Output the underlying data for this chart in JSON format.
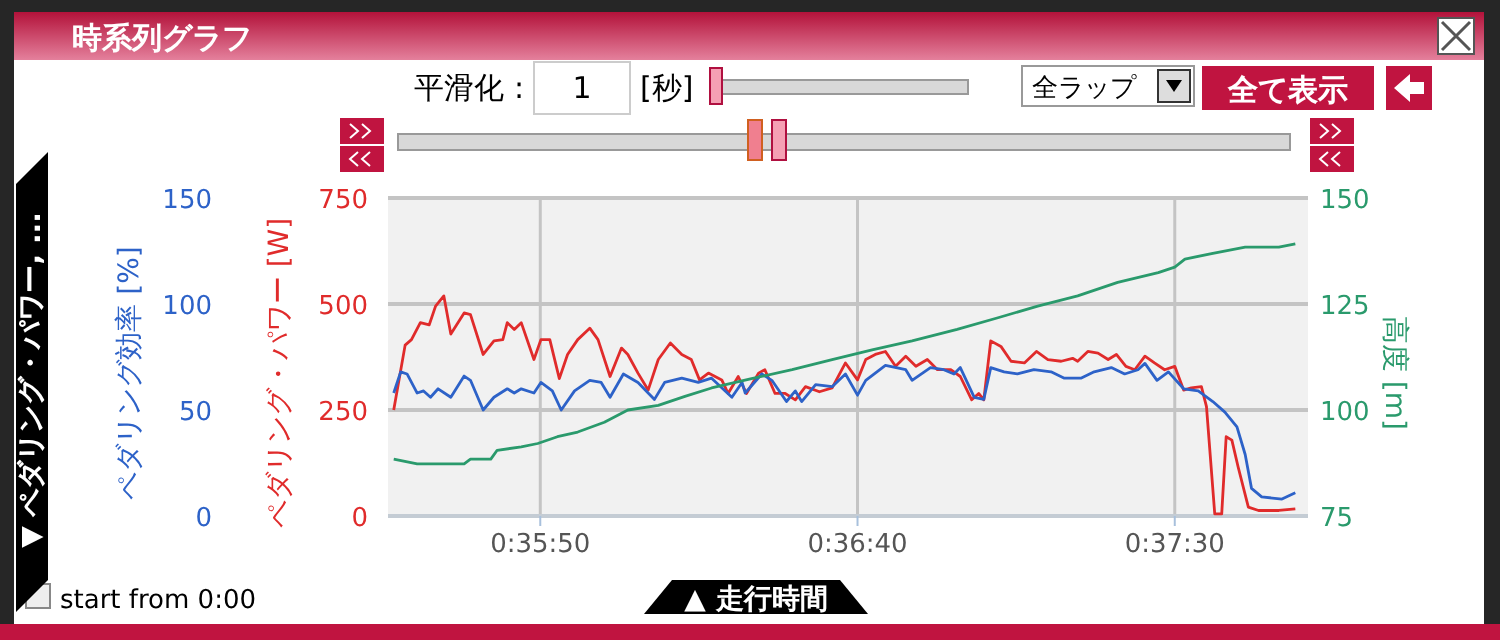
{
  "chart_data": {
    "type": "line",
    "title": "時系列グラフ",
    "xlabel": "▲ 走行時間",
    "ylabel": "ペダリング・パワー [W]",
    "y2label": "高度 [m]",
    "y3label": "ペダリング効率 [%]",
    "annotations": [
      "平滑化 :",
      "1",
      "[秒]",
      "全ラップ",
      "全て表示",
      "▼ ペダリング・パワー, ...",
      "start from 0:00"
    ],
    "grid": true,
    "xlim": [
      2126,
      2271
    ],
    "xticks": [
      {
        "value": 2150,
        "label": "0:35:50"
      },
      {
        "value": 2200,
        "label": "0:36:40"
      },
      {
        "value": 2250,
        "label": "0:37:30"
      }
    ],
    "ylim": [
      0,
      750
    ],
    "yticks": [
      0,
      250,
      500,
      750
    ],
    "y2lim": [
      75,
      150
    ],
    "y2ticks": [
      75,
      100,
      125,
      150
    ],
    "y3lim": [
      0,
      150
    ],
    "y3ticks": [
      0,
      50,
      100,
      150
    ],
    "series": [
      {
        "color": "#e02b2b",
        "axis": "y",
        "x": [
          2126.9,
          2128.7,
          2129.7,
          2131.1,
          2132.5,
          2133.5,
          2134.8,
          2135.9,
          2138,
          2139,
          2141,
          2142.7,
          2144.1,
          2144.8,
          2145.9,
          2147,
          2149,
          2150.1,
          2151.5,
          2153,
          2154.3,
          2155.9,
          2157.8,
          2159.1,
          2161,
          2162.8,
          2163.8,
          2165.4,
          2167,
          2168.6,
          2170.5,
          2172.3,
          2173.8,
          2175.1,
          2176.5,
          2178.6,
          2179.6,
          2181.2,
          2182.5,
          2184.4,
          2185.4,
          2187,
          2188.6,
          2190.2,
          2191.8,
          2194,
          2196,
          2198.1,
          2200,
          2201.3,
          2202.8,
          2204.4,
          2206,
          2207.6,
          2209.2,
          2211,
          2212.6,
          2214.7,
          2216.2,
          2218,
          2219.1,
          2219.9,
          2221,
          2222.6,
          2224.2,
          2226.3,
          2228.2,
          2230,
          2232.1,
          2233.9,
          2234.7,
          2236.3,
          2237.9,
          2239.5,
          2240.8,
          2242.3,
          2243.7,
          2245.3,
          2246.8,
          2248.4,
          2250,
          2251.4,
          2252.6,
          2254.2,
          2255,
          2256.3,
          2257.4,
          2258.1,
          2259,
          2260,
          2261.6,
          2263.2,
          2266.4,
          2269
        ],
        "values": [
          250,
          403,
          416,
          456,
          451,
          495,
          519,
          429,
          479,
          475,
          381,
          413,
          416,
          456,
          440,
          456,
          369,
          416,
          416,
          324,
          381,
          416,
          443,
          416,
          329,
          396,
          381,
          337,
          297,
          369,
          408,
          381,
          369,
          321,
          337,
          321,
          289,
          329,
          289,
          337,
          345,
          289,
          289,
          274,
          305,
          293,
          302,
          361,
          321,
          369,
          381,
          388,
          353,
          377,
          353,
          369,
          345,
          345,
          329,
          274,
          289,
          274,
          413,
          400,
          365,
          361,
          388,
          369,
          365,
          372,
          365,
          388,
          384,
          369,
          381,
          353,
          345,
          377,
          361,
          345,
          353,
          297,
          302,
          305,
          258,
          5,
          5,
          187,
          179,
          115,
          21,
          13,
          13,
          17
        ]
      },
      {
        "color": "#2d62c8",
        "axis": "y3",
        "x": [
          2126.9,
          2128,
          2129,
          2130.6,
          2131.6,
          2132.7,
          2133.9,
          2135.9,
          2138,
          2139,
          2141,
          2142.7,
          2144.8,
          2145.9,
          2147,
          2149,
          2150.1,
          2151.9,
          2153.3,
          2155.4,
          2157.8,
          2159.6,
          2161,
          2163.1,
          2165.4,
          2168,
          2169.6,
          2172.3,
          2174.9,
          2177,
          2180.2,
          2181.8,
          2182.3,
          2184.9,
          2186.5,
          2188.8,
          2190.2,
          2191.2,
          2193.4,
          2196,
          2198.1,
          2200,
          2201.3,
          2204.4,
          2207.6,
          2208.6,
          2211.5,
          2213.6,
          2215.2,
          2216.2,
          2218.4,
          2219.9,
          2221,
          2223.1,
          2225.2,
          2227.8,
          2230.5,
          2232.6,
          2235.2,
          2237.3,
          2240,
          2242.1,
          2244.2,
          2245.3,
          2247.2,
          2249,
          2251.4,
          2253.7,
          2256,
          2257.9,
          2259.8,
          2261.1,
          2262.1,
          2263.7,
          2266.9,
          2269
        ],
        "values": [
          58,
          68,
          67,
          58,
          59,
          56,
          60,
          56,
          66,
          64,
          50,
          56,
          60,
          58,
          60,
          58,
          63,
          59,
          50,
          59,
          64,
          63,
          56,
          67,
          63,
          55,
          63,
          65,
          63,
          65,
          56,
          63,
          58,
          67,
          64,
          54,
          59,
          54,
          62,
          61,
          67,
          57,
          64,
          71,
          69,
          64,
          70,
          69,
          67,
          70,
          56,
          55,
          70,
          68,
          67,
          69,
          68,
          65,
          65,
          68,
          70,
          67,
          69,
          72,
          64,
          68,
          60,
          59,
          54,
          49,
          42,
          29,
          13,
          9,
          8,
          11
        ]
      },
      {
        "color": "#2a9a6c",
        "axis": "y2",
        "x": [
          2126.9,
          2130.6,
          2138,
          2139,
          2142.2,
          2143.2,
          2147,
          2149.6,
          2152.7,
          2155.9,
          2160.1,
          2163.8,
          2168.6,
          2172.8,
          2177,
          2183.3,
          2189.7,
          2196,
          2202.3,
          2208.6,
          2215.7,
          2222,
          2228.4,
          2234.7,
          2241,
          2247.4,
          2250,
          2251.6,
          2255.8,
          2261.1,
          2266.4,
          2269
        ],
        "values": [
          88.4,
          87.3,
          87.3,
          88.4,
          88.4,
          90.5,
          91.3,
          92.1,
          93.7,
          94.8,
          97.1,
          100,
          101.1,
          103.2,
          105.2,
          107.4,
          109.5,
          111.9,
          114.2,
          116.3,
          119,
          121.7,
          124.5,
          126.9,
          130.1,
          132.4,
          133.7,
          135.6,
          136.9,
          138.4,
          138.4,
          139.2
        ]
      }
    ]
  }
}
